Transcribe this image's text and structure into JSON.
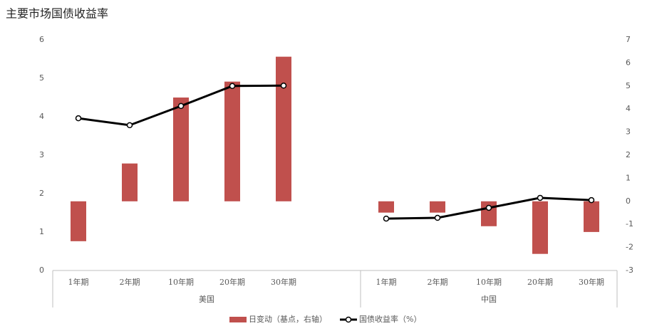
{
  "chart_data": {
    "type": "bar-line",
    "title": "主要市场国债收益率",
    "groups": [
      {
        "name": "美国",
        "categories": [
          "1年期",
          "2年期",
          "10年期",
          "20年期",
          "30年期"
        ]
      },
      {
        "name": "中国",
        "categories": [
          "1年期",
          "2年期",
          "10年期",
          "20年期",
          "30年期"
        ]
      }
    ],
    "series": [
      {
        "name": "日变动（基点，右轴）",
        "type": "bar",
        "axis": "y2",
        "color": "#c0504d",
        "values": [
          -1.73,
          1.64,
          4.5,
          5.19,
          6.27,
          -0.49,
          -0.49,
          -1.08,
          -2.28,
          -1.33
        ]
      },
      {
        "name": "国债收益率（%）",
        "type": "line",
        "axis": "y",
        "color": "#000000",
        "values": [
          3.96,
          3.78,
          4.28,
          4.8,
          4.81,
          1.35,
          1.37,
          1.63,
          1.89,
          1.83
        ]
      }
    ],
    "ylim": [
      0,
      6
    ],
    "yticks": [
      0,
      1,
      2,
      3,
      4,
      5,
      6
    ],
    "y2lim": [
      -3,
      7
    ],
    "y2ticks": [
      -3,
      -2,
      -1,
      0,
      1,
      2,
      3,
      4,
      5,
      6,
      7
    ],
    "legend": "bottom"
  }
}
